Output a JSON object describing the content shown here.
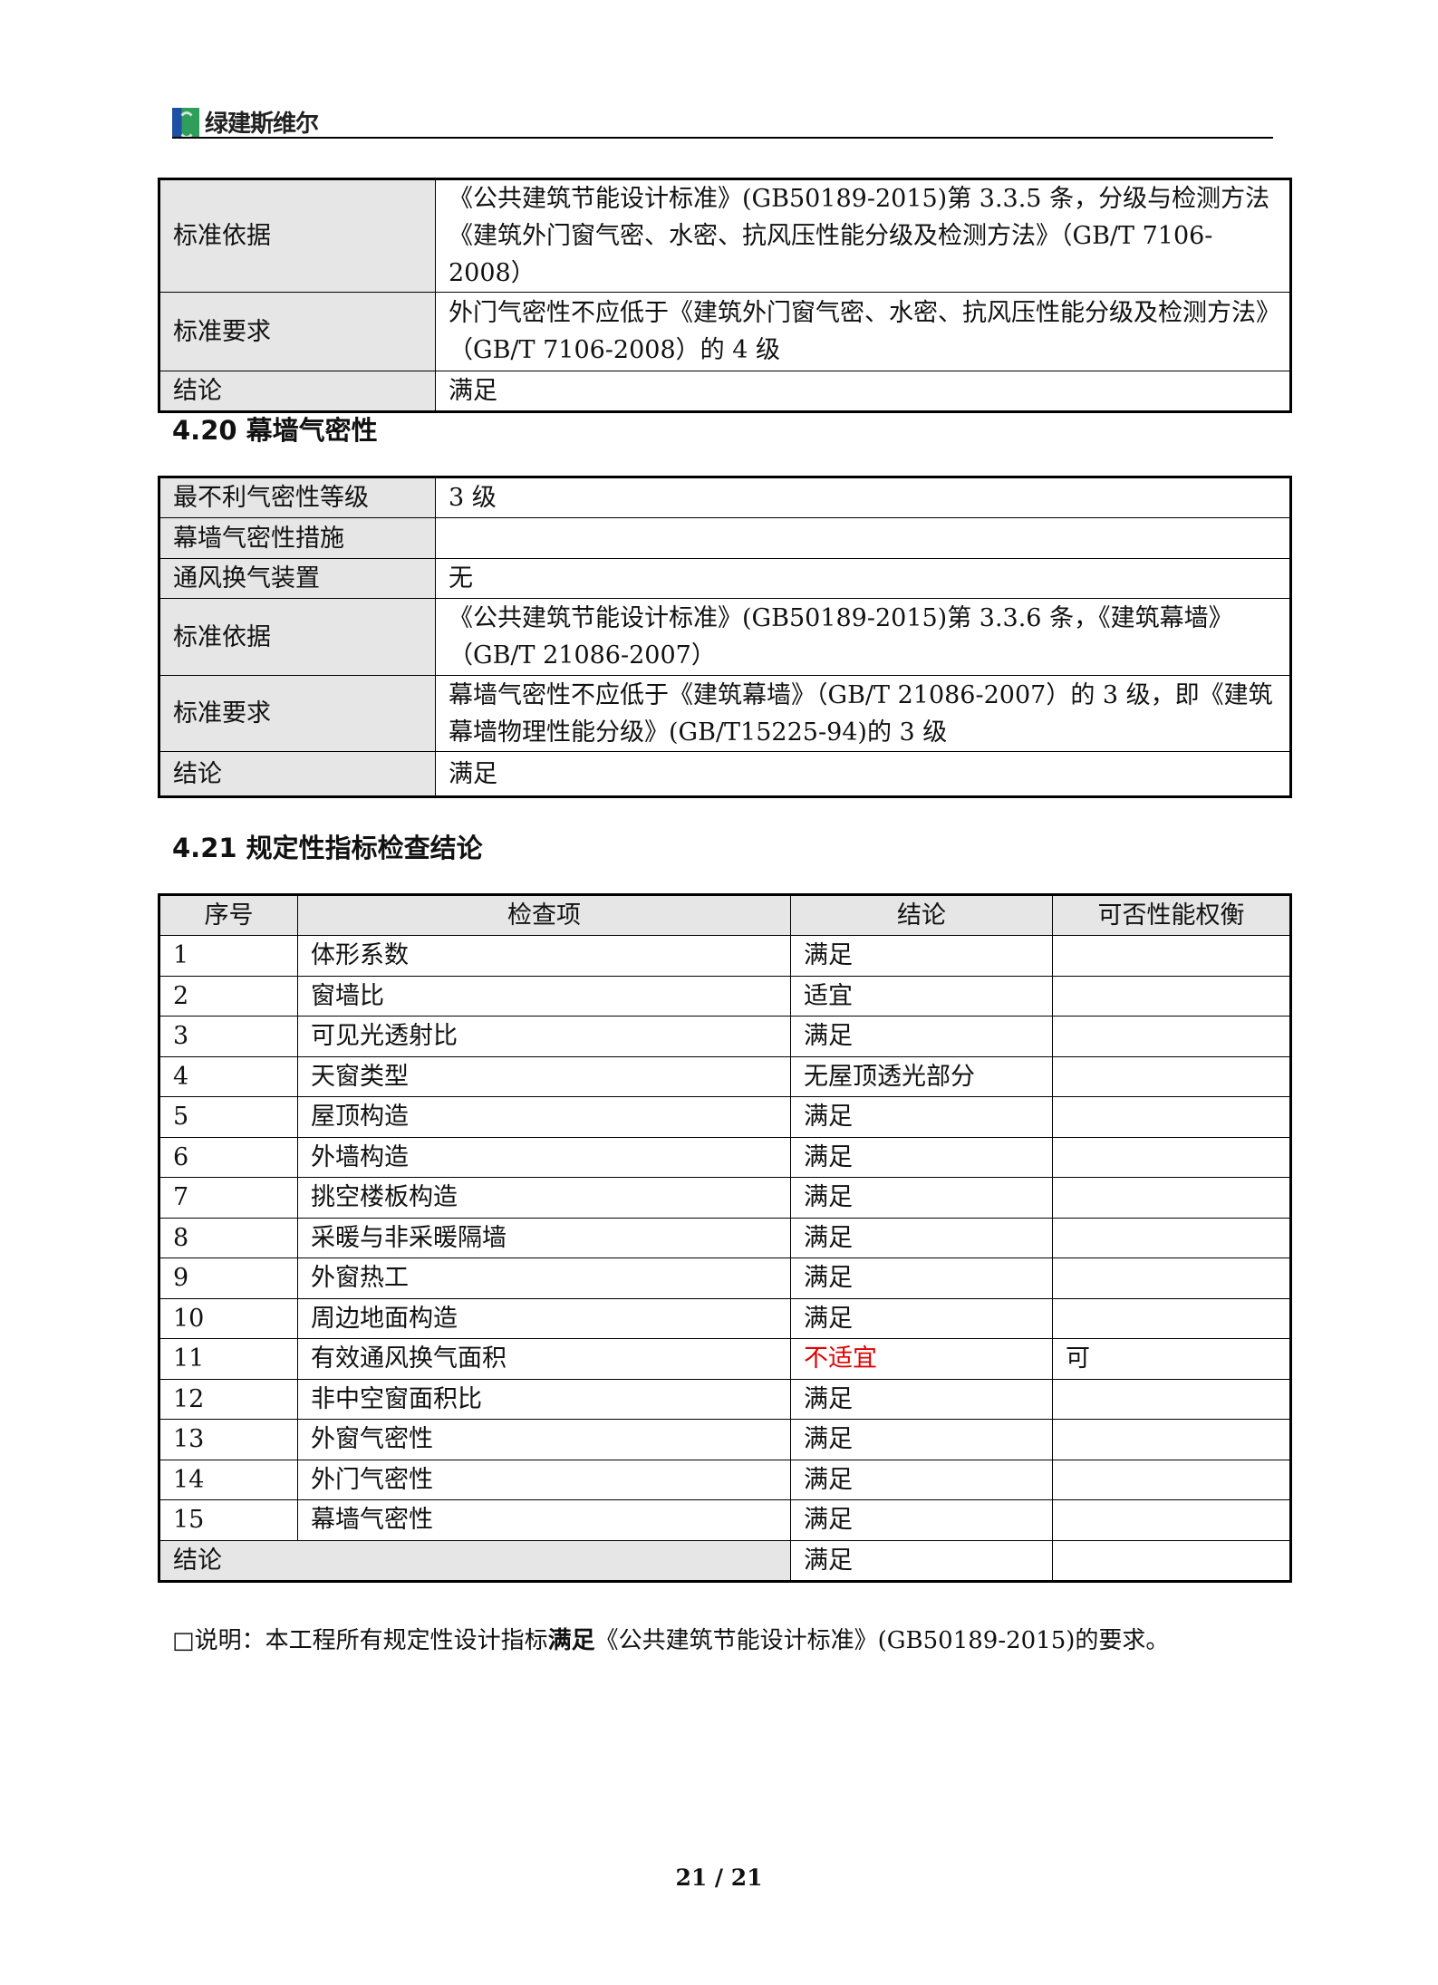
{
  "header": {
    "logo_text": "绿建斯维尔"
  },
  "table1": {
    "rows": [
      {
        "label": "标准依据",
        "value": "《公共建筑节能设计标准》(GB50189-2015)第 3.3.5 条，分级与检测方法《建筑外门窗气密、水密、抗风压性能分级及检测方法》（GB/T 7106-2008）"
      },
      {
        "label": "标准要求",
        "value": "外门气密性不应低于《建筑外门窗气密、水密、抗风压性能分级及检测方法》（GB/T 7106-2008）的 4 级"
      },
      {
        "label": "结论",
        "value": "满足"
      }
    ]
  },
  "section420": {
    "title": "4.20 幕墙气密性",
    "rows": [
      {
        "label": "最不利气密性等级",
        "value": "3 级"
      },
      {
        "label": "幕墙气密性措施",
        "value": ""
      },
      {
        "label": "通风换气装置",
        "value": "无"
      },
      {
        "label": "标准依据",
        "value": "《公共建筑节能设计标准》(GB50189-2015)第 3.3.6 条，《建筑幕墙》（GB/T 21086-2007）"
      },
      {
        "label": "标准要求",
        "value": "幕墙气密性不应低于《建筑幕墙》（GB/T 21086-2007）的 3 级，即《建筑幕墙物理性能分级》(GB/T15225-94)的 3 级"
      },
      {
        "label": "结论",
        "value": "满足"
      }
    ]
  },
  "section421": {
    "title": "4.21 规定性指标检查结论",
    "headers": [
      "序号",
      "检查项",
      "结论",
      "可否性能权衡"
    ],
    "rows": [
      [
        "1",
        "体形系数",
        "满足",
        ""
      ],
      [
        "2",
        "窗墙比",
        "适宜",
        ""
      ],
      [
        "3",
        "可见光透射比",
        "满足",
        ""
      ],
      [
        "4",
        "天窗类型",
        "无屋顶透光部分",
        ""
      ],
      [
        "5",
        "屋顶构造",
        "满足",
        ""
      ],
      [
        "6",
        "外墙构造",
        "满足",
        ""
      ],
      [
        "7",
        "挑空楼板构造",
        "满足",
        ""
      ],
      [
        "8",
        "采暖与非采暖隔墙",
        "满足",
        ""
      ],
      [
        "9",
        "外窗热工",
        "满足",
        ""
      ],
      [
        "10",
        "周边地面构造",
        "满足",
        ""
      ],
      [
        "11",
        "有效通风换气面积",
        "不适宜",
        "可"
      ],
      [
        "12",
        "非中空窗面积比",
        "满足",
        ""
      ],
      [
        "13",
        "外窗气密性",
        "满足",
        ""
      ],
      [
        "14",
        "外门气密性",
        "满足",
        ""
      ],
      [
        "15",
        "幕墙气密性",
        "满足",
        ""
      ]
    ],
    "summary_label": "结论",
    "summary_value": "满足"
  },
  "note": {
    "prefix": "□说明：本工程所有规定性设计指标",
    "bold": "满足",
    "suffix": "《公共建筑节能设计标准》(GB50189-2015)的要求。"
  },
  "footer": {
    "page": "21 / 21"
  },
  "colors": {
    "fail": "#e00000",
    "label_bg": "#e6e6e6"
  }
}
